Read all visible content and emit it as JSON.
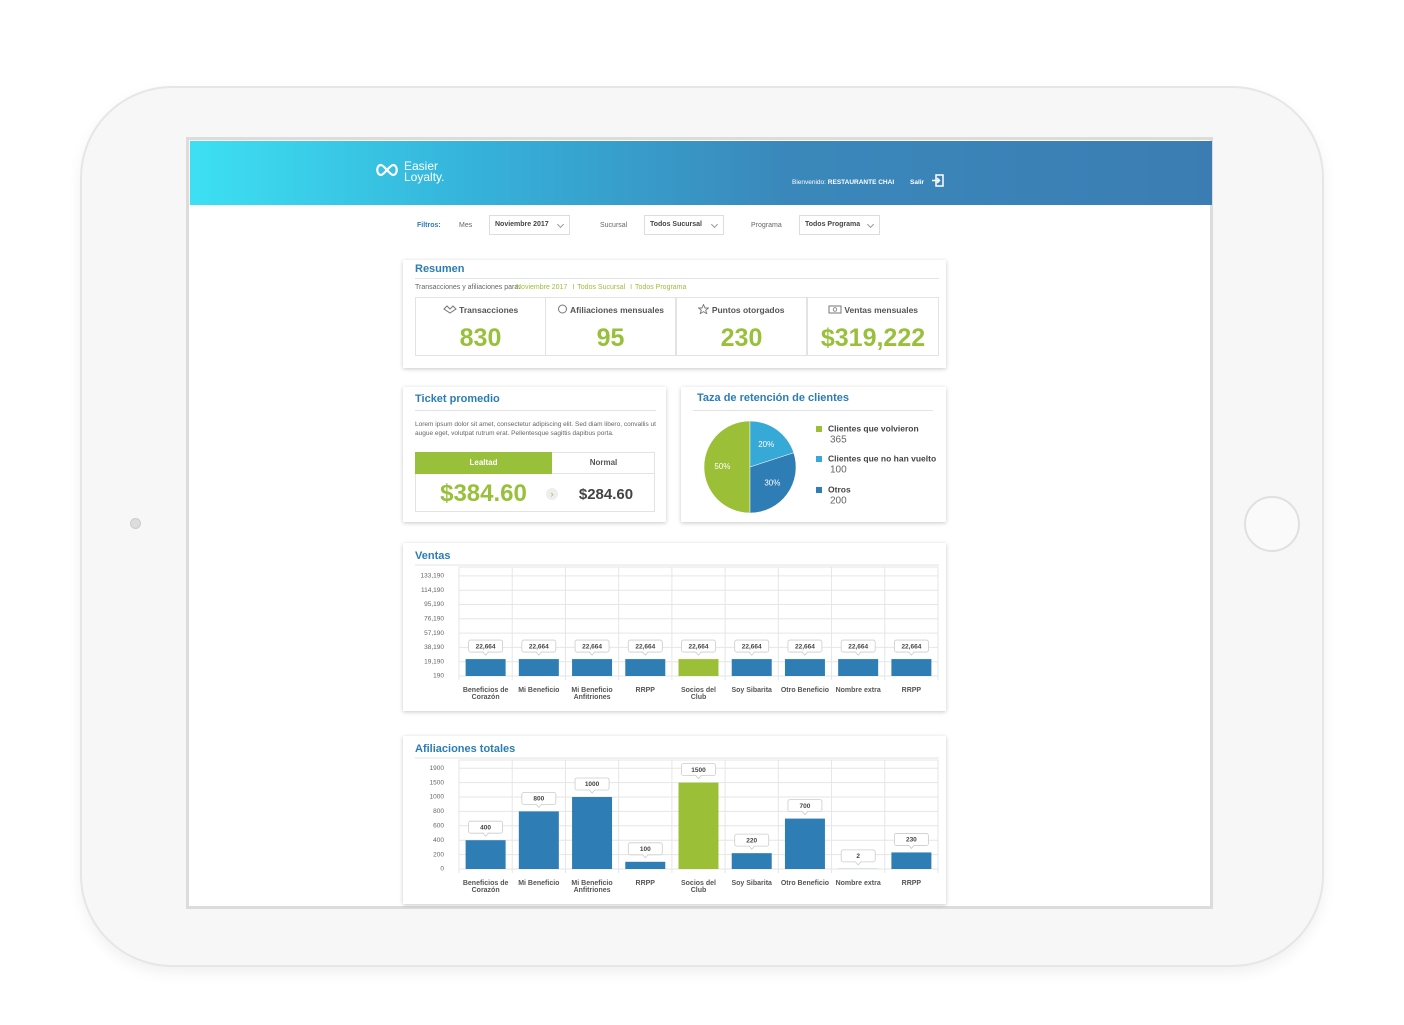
{
  "header": {
    "logo": [
      "Easier",
      "Loyalty."
    ],
    "welcome_label": "Bienvenido:",
    "user": "RESTAURANTE CHAI",
    "logout": "Salir"
  },
  "filters": {
    "label": "Filtros:",
    "items": [
      {
        "label": "Mes",
        "value": "Noviembre 2017"
      },
      {
        "label": "Sucursal",
        "value": "Todos Sucursal"
      },
      {
        "label": "Programa",
        "value": "Todos Programa"
      }
    ]
  },
  "summary": {
    "title": "Resumen",
    "subtitle": "Transacciones y afiliaciones para:",
    "links": [
      "Noviembre 2017",
      "Todos Sucursal",
      "Todos Programa"
    ],
    "separator": "I",
    "stats": [
      {
        "label": "Transacciones",
        "value": "830"
      },
      {
        "label": "Afiliaciones mensuales",
        "value": "95"
      },
      {
        "label": "Puntos otorgados",
        "value": "230"
      },
      {
        "label": "Ventas mensuales",
        "value": "$319,222"
      }
    ]
  },
  "ticket": {
    "title": "Ticket promedio",
    "text": "Lorem ipsum dolor sit amet, consectetur adipiscing elit. Sed diam libero, convallis ut augue eget, volutpat rutrum erat. Pellentesque sagittis dapibus porta.",
    "tabs": [
      "Lealtad",
      "Normal"
    ],
    "values": [
      "$384.60",
      "$284.60"
    ]
  },
  "chart_data": [
    {
      "type": "pie",
      "title": "Taza de retención de clientes",
      "categories": [
        "Clientes que volvieron",
        "Clientes que no han vuelto",
        "Otros"
      ],
      "values": [
        50,
        20,
        30
      ],
      "value_labels": [
        "50%",
        "20%",
        "30%"
      ],
      "counts": [
        365,
        100,
        200
      ],
      "colors": [
        "#9bc038",
        "#36a9d6",
        "#2f7db5"
      ]
    },
    {
      "type": "bar",
      "title": "Ventas",
      "categories": [
        "Beneficios de Corazón",
        "Mi Beneficio",
        "Mi Beneficio Anfitriones",
        "RRPP",
        "Socios del Club",
        "Soy Sibarita",
        "Otro Beneficio",
        "Nombre extra",
        "RRPP"
      ],
      "values": [
        22664,
        22664,
        22664,
        22664,
        22664,
        22664,
        22664,
        22664,
        22664
      ],
      "value_labels": [
        "22,664",
        "22,664",
        "22,664",
        "22,664",
        "22,664",
        "22,664",
        "22,664",
        "22,664",
        "22,664"
      ],
      "colors": [
        "#2f7db5",
        "#2f7db5",
        "#2f7db5",
        "#2f7db5",
        "#9bc038",
        "#2f7db5",
        "#2f7db5",
        "#2f7db5",
        "#2f7db5"
      ],
      "ylim": [
        190,
        133190
      ],
      "yticks": [
        190,
        {
          "value": 19190,
          "label": "19,190"
        },
        {
          "value": 38190,
          "label": "38,190"
        },
        {
          "value": 57190,
          "label": "57,190"
        },
        {
          "value": 76190,
          "label": "76,190"
        },
        {
          "value": 95190,
          "label": "95,190"
        },
        {
          "value": 114190,
          "label": "114,190"
        },
        {
          "value": 133190,
          "label": "133,190"
        }
      ],
      "grid": true
    },
    {
      "type": "bar",
      "title": "Afiliaciones totales",
      "categories": [
        "Beneficios de Corazón",
        "Mi Beneficio",
        "Mi Beneficio Anfitriones",
        "RRPP",
        "Socios del Club",
        "Soy Sibarita",
        "Otro Beneficio",
        "Nombre extra",
        "RRPP"
      ],
      "values": [
        400,
        800,
        1000,
        100,
        1500,
        220,
        700,
        2,
        230
      ],
      "colors": [
        "#2f7db5",
        "#2f7db5",
        "#2f7db5",
        "#2f7db5",
        "#9bc038",
        "#2f7db5",
        "#2f7db5",
        "#2f7db5",
        "#2f7db5"
      ],
      "ylim": [
        0,
        1900
      ],
      "yticks": [
        0,
        200,
        400,
        600,
        800,
        1000,
        1500,
        1900
      ],
      "grid": true
    }
  ]
}
